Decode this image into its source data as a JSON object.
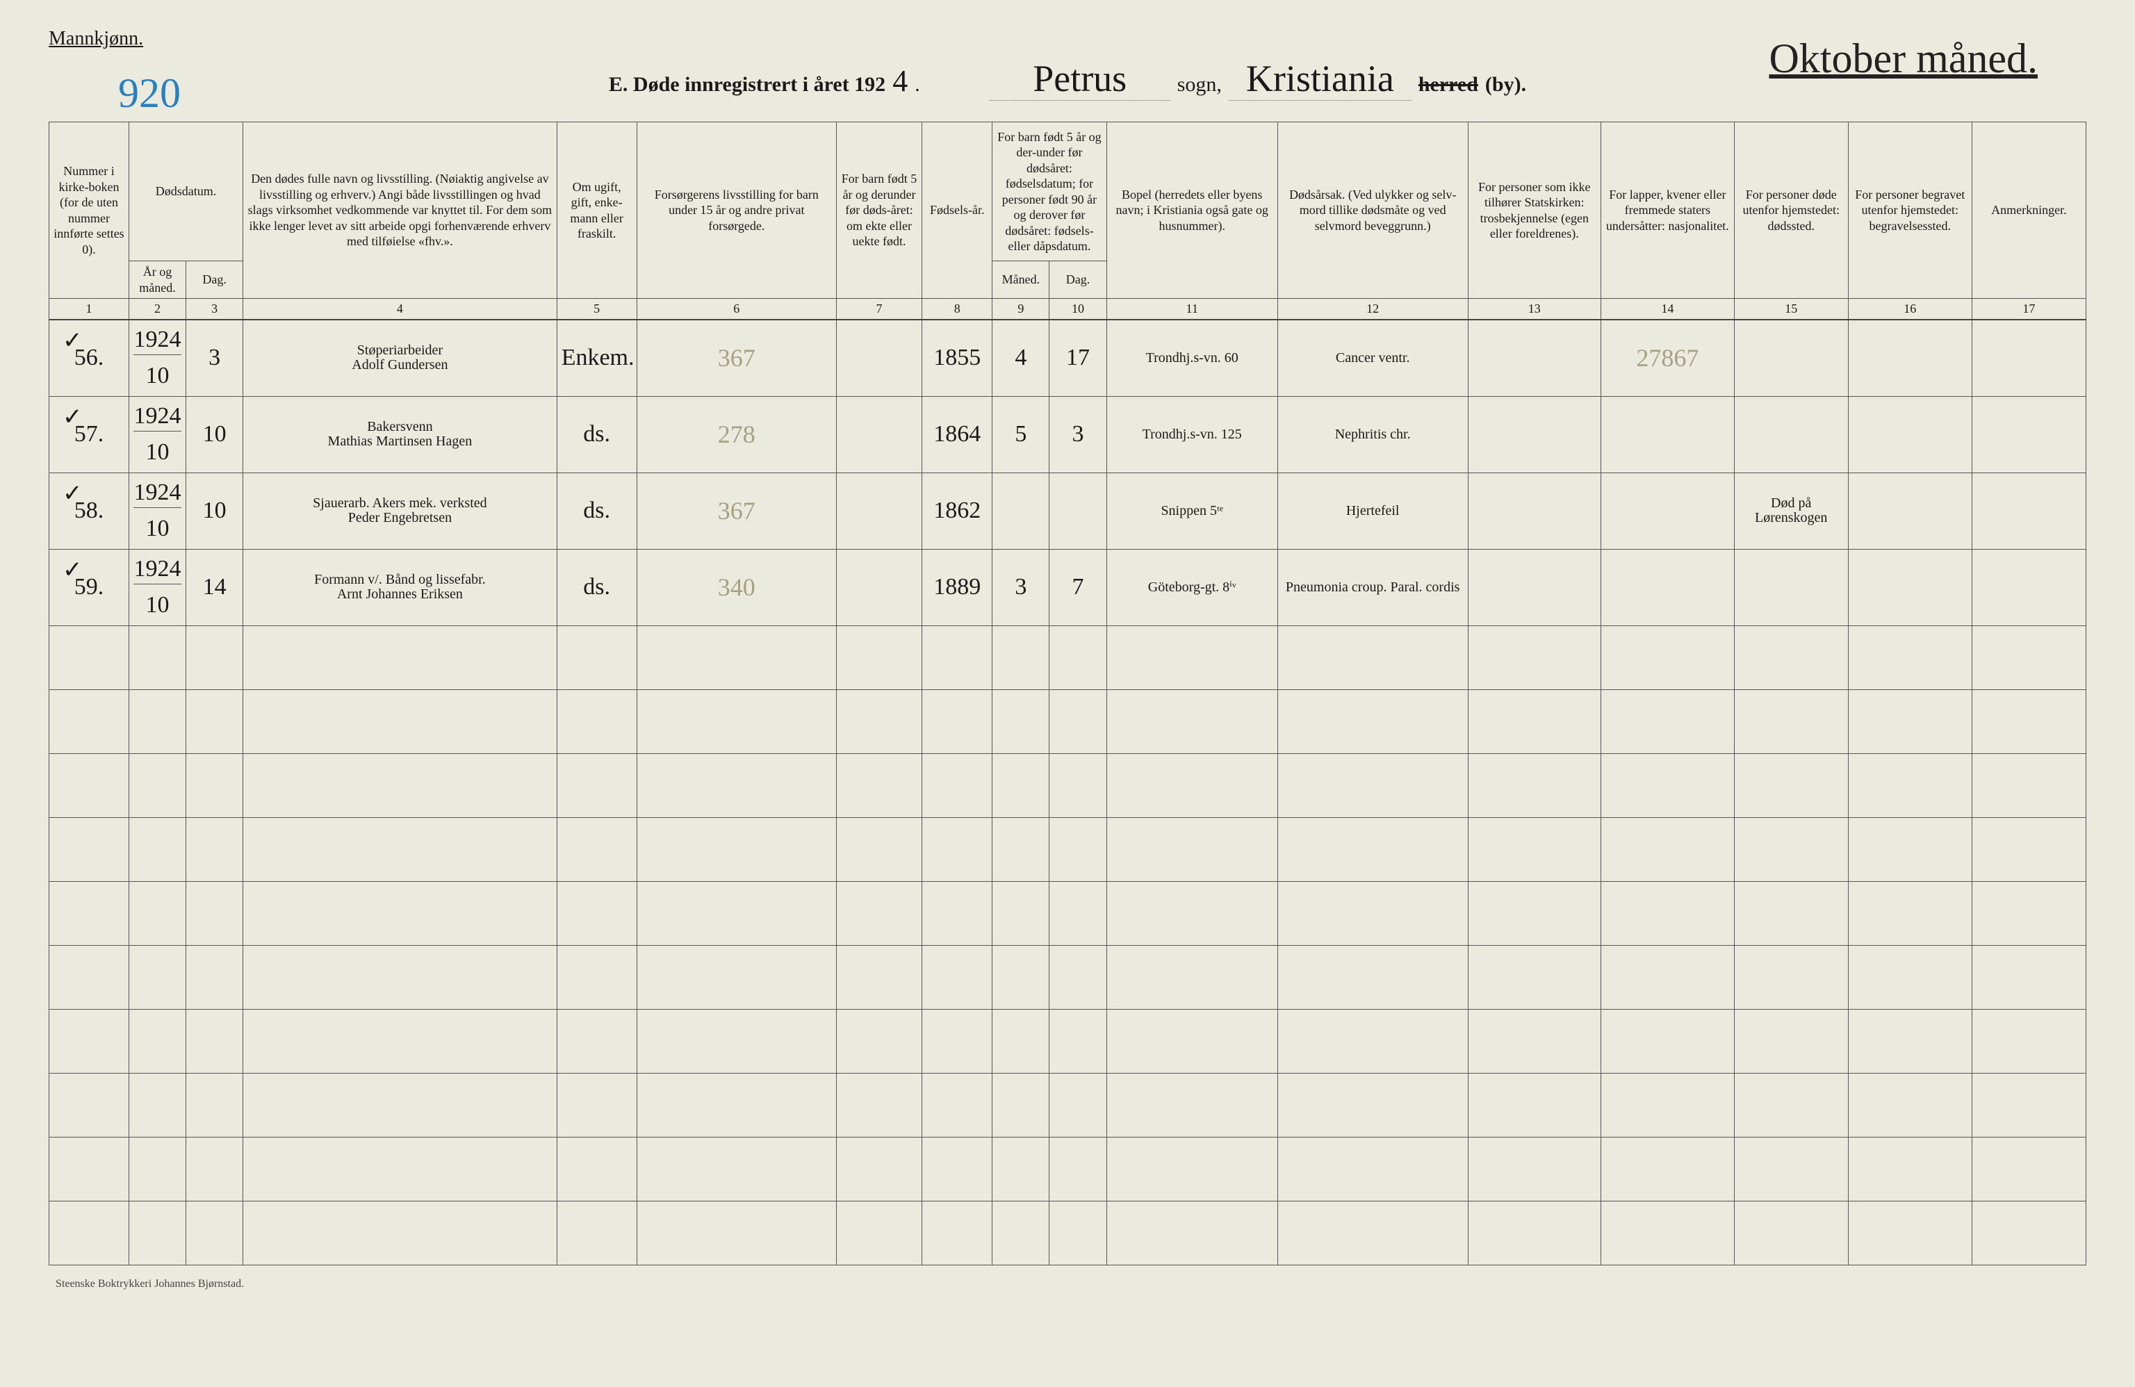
{
  "page": {
    "background": "#ebeade",
    "border": "#555555",
    "text": "#1a1a1a",
    "pencil": "#a8a082",
    "pagenum_color": "#2a7fbf"
  },
  "header": {
    "gender_label": "Mannkjønn.",
    "page_number": "920",
    "corner_note": "Oktober måned.",
    "title_prefix": "E.  Døde innregistrert i året 192",
    "title_year_hand": "4",
    "title_dot": ".",
    "parish_hand": "Petrus",
    "sogn_label": "sogn,",
    "city_hand": "Kristiania",
    "strike_word": "herred",
    "by_label": "(by)."
  },
  "columns": {
    "widths_pct": [
      4.2,
      3.0,
      3.0,
      16.5,
      4.2,
      10.5,
      4.5,
      3.7,
      3.0,
      3.0,
      9.0,
      10.0,
      7.0,
      7.0,
      6.0,
      6.5,
      6.0
    ],
    "headers": [
      "Nummer i kirke-boken (for de uten nummer innførte settes 0).",
      "Dødsdatum.",
      "",
      "Den dødes fulle navn og livsstilling. (Nøiaktig angivelse av livsstilling og erhverv.) Angi både livsstillingen og hvad slags virksomhet vedkommende var knyttet til. For dem som ikke lenger levet av sitt arbeide opgi forhenværende erhverv med tilføielse «fhv.».",
      "Om ugift, gift, enke-mann eller fraskilt.",
      "Forsørgerens livsstilling for barn under 15 år og andre privat forsørgede.",
      "For barn født 5 år og derunder før døds-året: om ekte eller uekte født.",
      "Fødsels-år.",
      "For barn født 5 år og der-under før dødsåret: fødselsdatum; for personer født 90 år og derover før dødsåret: fødsels- eller dåpsdatum.",
      "",
      "Bopel (herredets eller byens navn; i Kristiania også gate og husnummer).",
      "Dødsårsak. (Ved ulykker og selv-mord tillike dødsmåte og ved selvmord beveggrunn.)",
      "For personer som ikke tilhører Statskirken: trosbekjennelse (egen eller foreldrenes).",
      "For lapper, kvener eller fremmede staters undersåtter: nasjonalitet.",
      "For personer døde utenfor hjemstedet: dødssted.",
      "For personer begravet utenfor hjemstedet: begravelsessted.",
      "Anmerkninger."
    ],
    "sub_date": [
      "År og måned.",
      "Dag."
    ],
    "sub_birth": [
      "Måned.",
      "Dag."
    ],
    "numbers": [
      "1",
      "2",
      "3",
      "4",
      "5",
      "6",
      "7",
      "8",
      "9",
      "10",
      "11",
      "12",
      "13",
      "14",
      "15",
      "16",
      "17"
    ]
  },
  "rows": [
    {
      "check": "✓",
      "num": "56.",
      "year": "1924",
      "month": "10",
      "day": "3",
      "name_top": "Støperiarbeider",
      "name_bot": "Adolf Gundersen",
      "civil": "Enkem.",
      "col6": "367",
      "col7": "",
      "birthyear": "1855",
      "bm": "4",
      "bd": "17",
      "residence": "Trondhj.s-vn. 60",
      "cause": "Cancer ventr.",
      "col13": "",
      "col14": "27867",
      "col15": "",
      "col16": "",
      "col17": ""
    },
    {
      "check": "✓",
      "num": "57.",
      "year": "1924",
      "month": "10",
      "day": "10",
      "name_top": "Bakersvenn",
      "name_bot": "Mathias Martinsen Hagen",
      "civil": "ds.",
      "col6": "278",
      "col7": "",
      "birthyear": "1864",
      "bm": "5",
      "bd": "3",
      "residence": "Trondhj.s-vn. 125",
      "cause": "Nephritis chr.",
      "col13": "",
      "col14": "",
      "col15": "",
      "col16": "",
      "col17": ""
    },
    {
      "check": "✓",
      "num": "58.",
      "year": "1924",
      "month": "10",
      "day": "10",
      "name_top": "Sjauerarb. Akers mek. verksted",
      "name_bot": "Peder Engebretsen",
      "civil": "ds.",
      "col6": "367",
      "col7": "",
      "birthyear": "1862",
      "bm": "",
      "bd": "",
      "residence": "Snippen 5ᵗᵉ",
      "cause": "Hjertefeil",
      "col13": "",
      "col14": "",
      "col15": "Død på Lørenskogen",
      "col16": "",
      "col17": ""
    },
    {
      "check": "✓",
      "num": "59.",
      "year": "1924",
      "month": "10",
      "day": "14",
      "name_top": "Formann v/. Bånd og lissefabr.",
      "name_bot": "Arnt Johannes Eriksen",
      "civil": "ds.",
      "col6": "340",
      "col7": "",
      "birthyear": "1889",
      "bm": "3",
      "bd": "7",
      "residence": "Göteborg-gt. 8ⁱᵛ",
      "cause": "Pneumonia croup. Paral. cordis",
      "col13": "",
      "col14": "",
      "col15": "",
      "col16": "",
      "col17": ""
    }
  ],
  "empty_rows": 10,
  "footer": "Steenske Boktrykkeri Johannes Bjørnstad."
}
